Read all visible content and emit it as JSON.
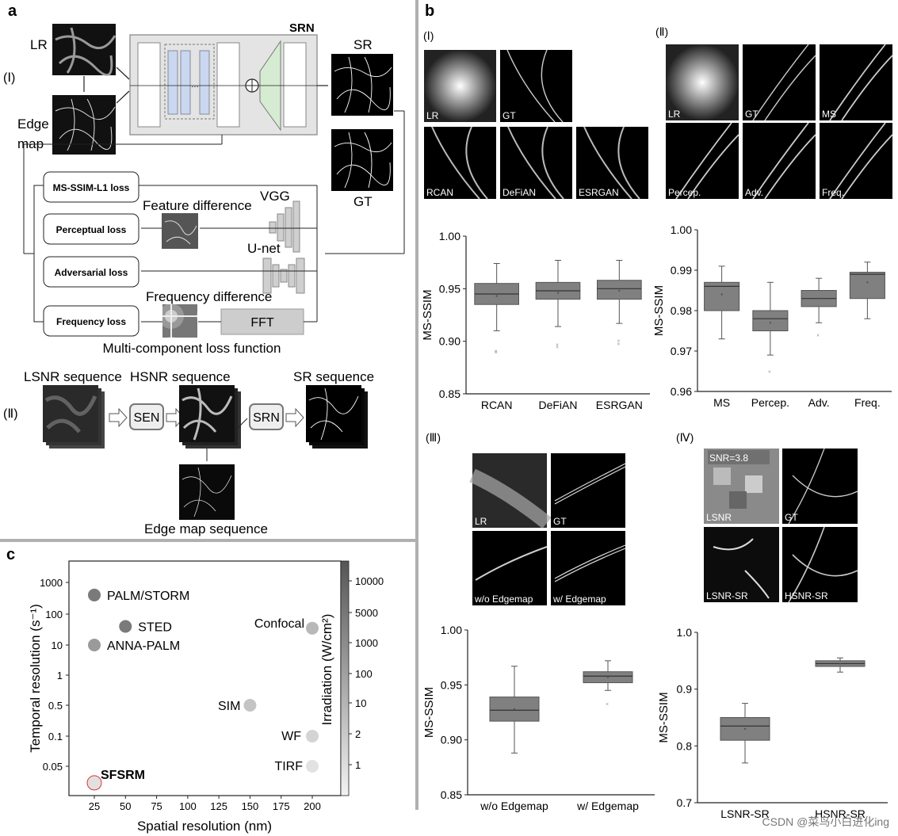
{
  "panel_a": {
    "label": "a",
    "section_i": "(Ⅰ)",
    "section_ii": "(Ⅱ)",
    "lr": "LR",
    "edge_map_1": "Edge",
    "edge_map_2": "map",
    "srn": "SRN",
    "sr": "SR",
    "gt": "GT",
    "vgg": "VGG",
    "unet": "U-net",
    "feature_difference": "Feature difference",
    "frequency_difference": "Frequency difference",
    "fft": "FFT",
    "losses": [
      "MS-SSIM-L1 loss",
      "Perceptual loss",
      "Adversarial loss",
      "Frequency loss"
    ],
    "caption": "Multi-component loss function",
    "lsnr_seq": "LSNR sequence",
    "hsnr_seq": "HSNR sequence",
    "sr_seq": "SR sequence",
    "sen": "SEN",
    "srn2": "SRN",
    "edge_seq": "Edge map sequence"
  },
  "panel_b": {
    "label": "b",
    "i": {
      "title": "(Ⅰ)",
      "tiles": [
        "LR",
        "GT",
        "RCAN",
        "DeFiAN",
        "ESRGAN"
      ]
    },
    "ii": {
      "title": "(Ⅱ)",
      "tiles": [
        "LR",
        "GT",
        "MS",
        "Percep.",
        "Adv.",
        "Freq."
      ]
    },
    "iii": {
      "title": "(Ⅲ)",
      "tiles": [
        "LR",
        "GT",
        "w/o Edgemap",
        "w/ Edgemap"
      ]
    },
    "iv": {
      "title": "(Ⅳ)",
      "tiles": [
        "LSNR",
        "GT",
        "LSNR-SR",
        "HSNR-SR"
      ],
      "snr": "SNR=3.8"
    }
  },
  "chart_data": [
    {
      "type": "box",
      "ylabel": "MS-SSIM",
      "ylim": [
        0.85,
        1.0
      ],
      "yticks": [
        "0.85",
        "0.90",
        "0.95",
        "1.00"
      ],
      "categories": [
        "RCAN",
        "DeFiAN",
        "ESRGAN"
      ],
      "boxes": [
        {
          "whisker_low": 0.91,
          "q1": 0.935,
          "median": 0.945,
          "q3": 0.955,
          "whisker_high": 0.974,
          "mean": 0.943,
          "outliers": [
            0.89,
            0.891
          ]
        },
        {
          "whisker_low": 0.914,
          "q1": 0.94,
          "median": 0.948,
          "q3": 0.956,
          "whisker_high": 0.977,
          "mean": 0.946,
          "outliers": [
            0.895,
            0.897
          ]
        },
        {
          "whisker_low": 0.917,
          "q1": 0.94,
          "median": 0.95,
          "q3": 0.958,
          "whisker_high": 0.977,
          "mean": 0.948,
          "outliers": [
            0.898,
            0.901
          ]
        }
      ]
    },
    {
      "type": "box",
      "ylabel": "MS-SSIM",
      "ylim": [
        0.96,
        1.0
      ],
      "yticks": [
        "0.96",
        "0.97",
        "0.98",
        "0.99",
        "1.00"
      ],
      "categories": [
        "MS",
        "Percep.",
        "Adv.",
        "Freq."
      ],
      "boxes": [
        {
          "whisker_low": 0.973,
          "q1": 0.98,
          "median": 0.986,
          "q3": 0.987,
          "whisker_high": 0.991,
          "mean": 0.984,
          "outliers": []
        },
        {
          "whisker_low": 0.969,
          "q1": 0.975,
          "median": 0.978,
          "q3": 0.98,
          "whisker_high": 0.987,
          "mean": 0.977,
          "outliers": [
            0.965
          ]
        },
        {
          "whisker_low": 0.977,
          "q1": 0.981,
          "median": 0.983,
          "q3": 0.985,
          "whisker_high": 0.988,
          "mean": 0.983,
          "outliers": [
            0.974
          ]
        },
        {
          "whisker_low": 0.978,
          "q1": 0.983,
          "median": 0.989,
          "q3": 0.9895,
          "whisker_high": 0.992,
          "mean": 0.987,
          "outliers": []
        }
      ]
    },
    {
      "type": "box",
      "ylabel": "MS-SSIM",
      "ylim": [
        0.85,
        1.0
      ],
      "yticks": [
        "0.85",
        "0.90",
        "0.95",
        "1.00"
      ],
      "categories": [
        "w/o Edgemap",
        "w/ Edgemap"
      ],
      "boxes": [
        {
          "whisker_low": 0.888,
          "q1": 0.917,
          "median": 0.927,
          "q3": 0.939,
          "whisker_high": 0.967,
          "mean": 0.928,
          "outliers": []
        },
        {
          "whisker_low": 0.945,
          "q1": 0.952,
          "median": 0.958,
          "q3": 0.962,
          "whisker_high": 0.972,
          "mean": 0.957,
          "outliers": [
            0.933
          ]
        }
      ]
    },
    {
      "type": "box",
      "ylabel": "MS-SSIM",
      "ylim": [
        0.7,
        1.0
      ],
      "yticks": [
        "0.7",
        "0.8",
        "0.9",
        "1.0"
      ],
      "categories": [
        "LSNR-SR",
        "HSNR-SR"
      ],
      "boxes": [
        {
          "whisker_low": 0.77,
          "q1": 0.81,
          "median": 0.835,
          "q3": 0.85,
          "whisker_high": 0.875,
          "mean": 0.83,
          "outliers": []
        },
        {
          "whisker_low": 0.93,
          "q1": 0.94,
          "median": 0.945,
          "q3": 0.95,
          "whisker_high": 0.955,
          "mean": 0.945,
          "outliers": []
        }
      ]
    },
    {
      "type": "scatter",
      "label": "c",
      "xlabel": "Spatial resolution (nm)",
      "ylabel": "Temporal resolution (s⁻¹)",
      "y2label": "Irradiation (W/cm²)",
      "xticks": [
        "25",
        "50",
        "75",
        "100",
        "125",
        "150",
        "175",
        "200"
      ],
      "yticks": [
        "0.05",
        "0.1",
        "0.5",
        "1",
        "10",
        "100",
        "1000"
      ],
      "y2ticks": [
        "1",
        "2",
        "10",
        "100",
        "1000",
        "5000",
        "10000"
      ],
      "points": [
        {
          "name": "PALM/STORM",
          "x": 25,
          "y": 400,
          "color": "#7a7a7a"
        },
        {
          "name": "STED",
          "x": 50,
          "y": 40,
          "color": "#7a7a7a"
        },
        {
          "name": "ANNA-PALM",
          "x": 25,
          "y": 10,
          "color": "#9a9a9a"
        },
        {
          "name": "Confocal",
          "x": 200,
          "y": 35,
          "color": "#b8b8b8"
        },
        {
          "name": "SIM",
          "x": 150,
          "y": 0.5,
          "color": "#c4c4c4"
        },
        {
          "name": "WF",
          "x": 200,
          "y": 0.1,
          "color": "#d4d4d4"
        },
        {
          "name": "TIRF",
          "x": 200,
          "y": 0.05,
          "color": "#e2e2e2"
        },
        {
          "name": "SFSRM",
          "x": 25,
          "y": 0.015,
          "color": "#e0e0e0"
        }
      ]
    }
  ],
  "watermark": "CSDN @菜鸟小白进化ing"
}
